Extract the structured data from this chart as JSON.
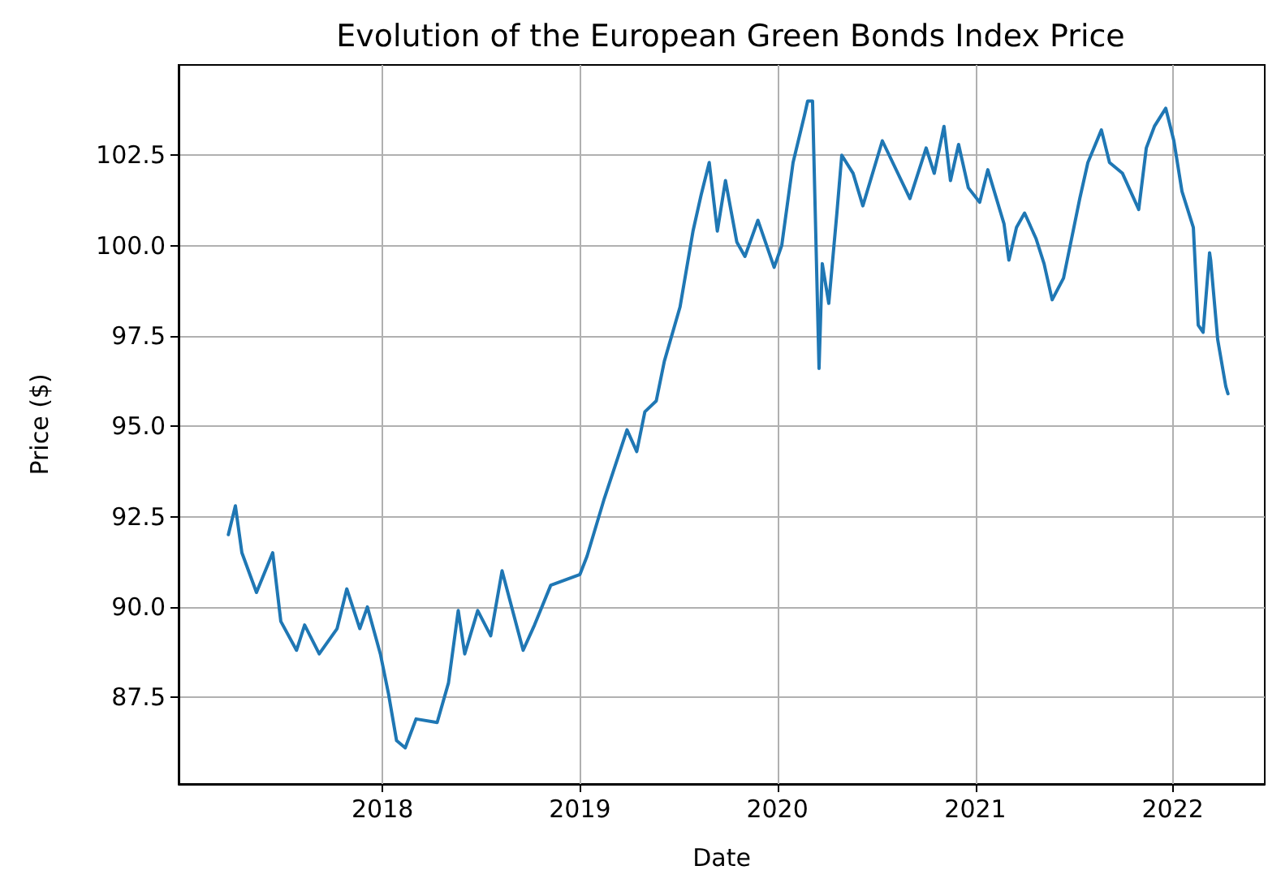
{
  "chart_data": {
    "type": "line",
    "title": "Evolution of the European Green Bonds Index Price",
    "xlabel": "Date",
    "ylabel": "Price ($)",
    "x": [
      "2017-03-22",
      "2017-04-04",
      "2017-04-16",
      "2017-05-13",
      "2017-06-12",
      "2017-06-27",
      "2017-07-26",
      "2017-08-10",
      "2017-09-06",
      "2017-10-09",
      "2017-10-27",
      "2017-11-20",
      "2017-12-04",
      "2017-12-28",
      "2018-01-12",
      "2018-01-27",
      "2018-02-12",
      "2018-03-04",
      "2018-04-12",
      "2018-05-03",
      "2018-05-21",
      "2018-06-02",
      "2018-06-26",
      "2018-07-20",
      "2018-08-10",
      "2018-09-18",
      "2018-10-09",
      "2018-11-08",
      "2019-01-01",
      "2019-01-14",
      "2019-02-15",
      "2019-03-29",
      "2019-04-16",
      "2019-05-01",
      "2019-05-22",
      "2019-06-06",
      "2019-07-05",
      "2019-07-29",
      "2019-08-13",
      "2019-08-28",
      "2019-09-12",
      "2019-09-27",
      "2019-10-18",
      "2019-11-02",
      "2019-11-26",
      "2019-12-26",
      "2020-01-09",
      "2020-01-30",
      "2020-02-20",
      "2020-02-26",
      "2020-03-06",
      "2020-03-18",
      "2020-03-24",
      "2020-04-05",
      "2020-04-20",
      "2020-04-29",
      "2020-05-20",
      "2020-06-07",
      "2020-07-13",
      "2020-09-02",
      "2020-10-02",
      "2020-10-17",
      "2020-11-04",
      "2020-11-16",
      "2020-12-01",
      "2020-12-19",
      "2021-01-09",
      "2021-01-24",
      "2021-02-23",
      "2021-03-04",
      "2021-03-18",
      "2021-04-02",
      "2021-04-23",
      "2021-05-08",
      "2021-05-23",
      "2021-06-13",
      "2021-07-13",
      "2021-07-28",
      "2021-08-22",
      "2021-09-06",
      "2021-09-30",
      "2021-10-30",
      "2021-11-13",
      "2021-11-28",
      "2021-12-19",
      "2022-01-03",
      "2022-01-18",
      "2022-02-08",
      "2022-02-17",
      "2022-02-26",
      "2022-03-10",
      "2022-03-12",
      "2022-03-25",
      "2022-04-09",
      "2022-04-13"
    ],
    "series": [
      {
        "color": "#1f77b4",
        "values": [
          92.0,
          92.8,
          91.5,
          90.4,
          91.5,
          89.6,
          88.8,
          89.5,
          88.7,
          89.4,
          90.5,
          89.4,
          90.0,
          88.7,
          87.6,
          86.3,
          86.1,
          86.9,
          86.8,
          87.9,
          89.9,
          88.7,
          89.9,
          89.2,
          91.0,
          88.8,
          89.5,
          90.6,
          90.9,
          91.4,
          93.0,
          94.9,
          94.3,
          95.4,
          95.7,
          96.8,
          98.3,
          100.4,
          101.4,
          102.3,
          100.4,
          101.8,
          100.1,
          99.7,
          100.7,
          99.4,
          100.0,
          102.3,
          103.6,
          104.0,
          104.0,
          96.6,
          99.5,
          98.4,
          100.9,
          102.5,
          102.0,
          101.1,
          102.9,
          101.3,
          102.7,
          102.0,
          103.3,
          101.8,
          102.8,
          101.6,
          101.2,
          102.1,
          100.6,
          99.6,
          100.5,
          100.9,
          100.2,
          99.5,
          98.5,
          99.1,
          101.3,
          102.3,
          103.2,
          102.3,
          102.0,
          101.0,
          102.7,
          103.3,
          103.8,
          102.9,
          101.5,
          100.5,
          97.8,
          97.6,
          99.8,
          99.6,
          97.4,
          96.1,
          95.9
        ]
      }
    ],
    "xlim": [
      "2016-12-20",
      "2022-06-20"
    ],
    "xticks": [
      "2018",
      "2019",
      "2020",
      "2021",
      "2022"
    ],
    "ylim": [
      85.1,
      105.0
    ],
    "yticks": [
      87.5,
      {
        "value": 90,
        "label": "90.0"
      },
      92.5,
      {
        "value": 95,
        "label": "95.0"
      },
      97.5,
      {
        "value": 100,
        "label": "100.0"
      },
      102.5
    ],
    "grid": true,
    "line_style": "solid",
    "marker": "none"
  }
}
